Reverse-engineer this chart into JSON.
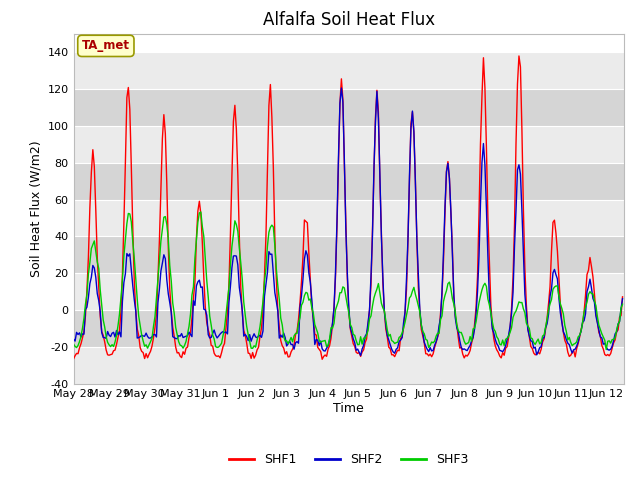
{
  "title": "Alfalfa Soil Heat Flux",
  "ylabel": "Soil Heat Flux (W/m2)",
  "xlabel": "Time",
  "ylim": [
    -40,
    150
  ],
  "yticks": [
    -40,
    -20,
    0,
    20,
    40,
    60,
    80,
    100,
    120,
    140
  ],
  "annotation_text": "TA_met",
  "legend_labels": [
    "SHF1",
    "SHF2",
    "SHF3"
  ],
  "line_colors": [
    "#ff0000",
    "#0000cc",
    "#00cc00"
  ],
  "background_color": "#ffffff",
  "plot_bg_color": "#e0e0e0",
  "band_light": "#ebebeb",
  "band_dark": "#d5d5d5",
  "title_fontsize": 12,
  "label_fontsize": 9,
  "tick_fontsize": 8,
  "xtick_labels": [
    "May 28",
    "May 29",
    "May 30",
    "May 31",
    "Jun 1",
    "Jun 2",
    "Jun 3",
    "Jun 4",
    "Jun 5",
    "Jun 6",
    "Jun 7",
    "Jun 8",
    "Jun 9",
    "Jun 10",
    "Jun 11",
    "Jun 12"
  ],
  "num_days": 15.5
}
